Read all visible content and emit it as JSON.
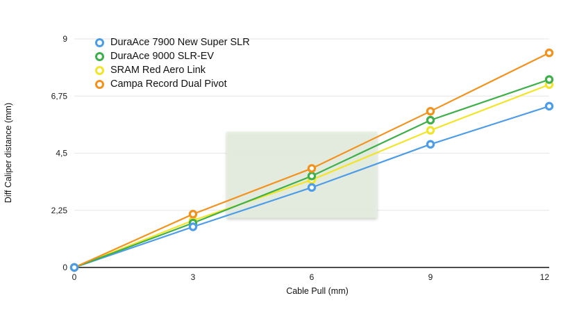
{
  "chart_data": {
    "type": "line",
    "title": "",
    "xlabel": "Cable Pull (mm)",
    "ylabel": "Diff Caliper distance (mm)",
    "x": [
      0,
      3,
      6,
      9,
      12
    ],
    "xlim": [
      0,
      12
    ],
    "ylim": [
      0,
      9
    ],
    "x_ticks": [
      0,
      3,
      6,
      9,
      12
    ],
    "x_tick_labels": [
      "0",
      "3",
      "6",
      "9",
      "12"
    ],
    "y_ticks": [
      0,
      2.25,
      4.5,
      6.75,
      9
    ],
    "y_tick_labels": [
      "0",
      "2,25",
      "4,5",
      "6,75",
      "9"
    ],
    "grid": "horizontal",
    "legend_position": "inside-top-left",
    "series": [
      {
        "name": "DuraAce 7900 New Super SLR",
        "color": "#4D9CE8",
        "values": [
          0,
          1.6,
          3.15,
          4.85,
          6.35
        ]
      },
      {
        "name": "DuraAce 9000 SLR-EV",
        "color": "#3EAF49",
        "values": [
          0,
          1.75,
          3.6,
          5.8,
          7.4
        ]
      },
      {
        "name": "SRAM Red Aero Link",
        "color": "#F2E428",
        "values": [
          0,
          1.85,
          3.45,
          5.4,
          7.2
        ]
      },
      {
        "name": "Campa Record Dual Pivot",
        "color": "#F2921D",
        "values": [
          0,
          2.1,
          3.9,
          6.15,
          8.45
        ]
      }
    ],
    "highlight_region": {
      "x0": 3.85,
      "x1": 7.65,
      "y0": 1.95,
      "y1": 5.35,
      "fill": "#E8F0E3"
    },
    "colors": {
      "gridline": "#e6e6e6",
      "axis_line": "#111111",
      "tick_text": "#1a1a1a",
      "background": "#ffffff"
    }
  }
}
